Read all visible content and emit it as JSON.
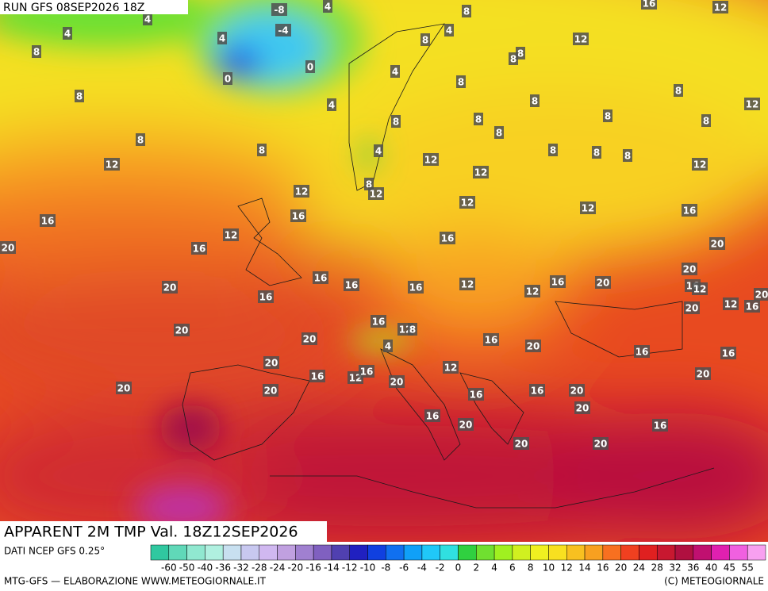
{
  "header": {
    "run": "RUN GFS 08SEP2026 18Z",
    "title": "APPARENT 2M TMP Val. 18Z12SEP2026"
  },
  "footer": {
    "source": "DATI NCEP GFS 0.25°",
    "credit": "MTG-GFS — ELABORAZIONE WWW.METEOGIORNALE.IT",
    "copyright": "(C) METEOGIORNALE"
  },
  "scale": {
    "labels": [
      -60,
      -50,
      -40,
      -36,
      -32,
      -28,
      -24,
      -20,
      -16,
      -14,
      -12,
      -10,
      -8,
      -6,
      -4,
      -2,
      0,
      2,
      4,
      6,
      8,
      10,
      12,
      14,
      16,
      20,
      24,
      28,
      32,
      36,
      40,
      45,
      55
    ],
    "colors": [
      "#30c8a0",
      "#60d8b8",
      "#90e8d0",
      "#b0f0e0",
      "#c8e0f0",
      "#c8c8f0",
      "#d0b8f0",
      "#c0a0e0",
      "#a080d0",
      "#8060c0",
      "#5040b0",
      "#2020c0",
      "#1040e0",
      "#1070f0",
      "#10a0f8",
      "#20c8f8",
      "#30e0e0",
      "#30d040",
      "#70e030",
      "#a0f020",
      "#d0f020",
      "#f0f020",
      "#f8e020",
      "#f8c020",
      "#f8a020",
      "#f87020",
      "#f04020",
      "#e02020",
      "#c81830",
      "#b01040",
      "#c01070",
      "#e020b0",
      "#f060e0",
      "#f8a0f0"
    ]
  },
  "map_labels": [
    -8,
    4,
    4,
    4,
    8,
    4,
    -4,
    0,
    0,
    4,
    8,
    8,
    12,
    8,
    8,
    4,
    8,
    8,
    8,
    4,
    8,
    8,
    8,
    8,
    8,
    12,
    16,
    12,
    8,
    12,
    8,
    8,
    8,
    8,
    8,
    12,
    4,
    12,
    12,
    8,
    12,
    12,
    12,
    12,
    16,
    16,
    16,
    12,
    16,
    20,
    20,
    16,
    20,
    16,
    16,
    16,
    12,
    12,
    16,
    20,
    16,
    12,
    20,
    20,
    16,
    20,
    12,
    16,
    16,
    12,
    8,
    20,
    20,
    4,
    16,
    20,
    16,
    16,
    20,
    12,
    16,
    12,
    16,
    20,
    20,
    20,
    20,
    16,
    16,
    20,
    20,
    16,
    20,
    16,
    20,
    20
  ]
}
